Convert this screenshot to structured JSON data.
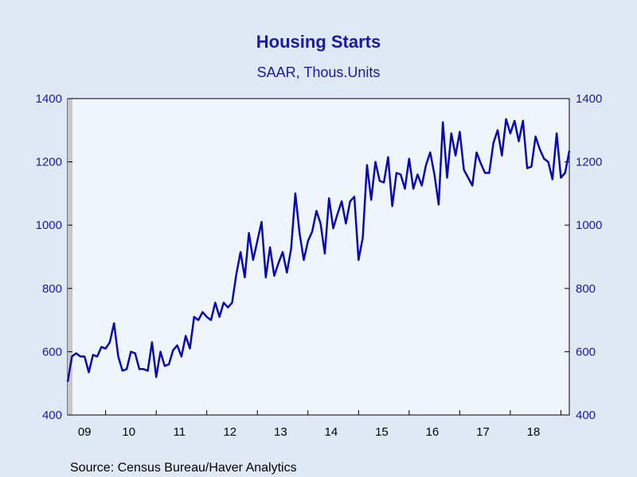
{
  "chart_data": {
    "type": "line",
    "title": "Housing Starts",
    "subtitle": "SAAR, Thous.Units",
    "source": "Source:  Census Bureau/Haver Analytics",
    "ylim": [
      400,
      1400
    ],
    "yticks": [
      400,
      600,
      800,
      1000,
      1200,
      1400
    ],
    "yticks_right": true,
    "x_start": "2009-04",
    "x_end": "2019-03",
    "xtick_labels": [
      "09",
      "10",
      "11",
      "12",
      "13",
      "14",
      "15",
      "16",
      "17",
      "18"
    ],
    "colors": {
      "line": "#0a0ab4",
      "plot_bg": "#eef5fd",
      "page_bg": "#dfe9f6",
      "recession_shade": "#c8c8c8",
      "tick_text": "#1a1aa6"
    },
    "series": [
      {
        "values": [
          505,
          585,
          595,
          585,
          585,
          535,
          590,
          585,
          615,
          610,
          630,
          690,
          585,
          540,
          545,
          600,
          595,
          545,
          545,
          540,
          630,
          520,
          600,
          555,
          560,
          605,
          620,
          585,
          650,
          610,
          710,
          700,
          725,
          710,
          700,
          755,
          710,
          755,
          740,
          755,
          845,
          915,
          835,
          975,
          890,
          950,
          1010,
          835,
          930,
          840,
          880,
          915,
          850,
          925,
          1100,
          975,
          890,
          950,
          980,
          1045,
          1005,
          910,
          1085,
          990,
          1035,
          1075,
          1005,
          1075,
          1090,
          890,
          960,
          1190,
          1080,
          1200,
          1140,
          1135,
          1215,
          1060,
          1165,
          1160,
          1115,
          1210,
          1115,
          1160,
          1125,
          1190,
          1230,
          1160,
          1065,
          1325,
          1150,
          1290,
          1220,
          1295,
          1175,
          1150,
          1125,
          1230,
          1195,
          1165,
          1165,
          1260,
          1300,
          1220,
          1335,
          1290,
          1330,
          1265,
          1330,
          1180,
          1185,
          1280,
          1240,
          1210,
          1200,
          1145,
          1290,
          1150,
          1165,
          1235
        ]
      }
    ]
  }
}
